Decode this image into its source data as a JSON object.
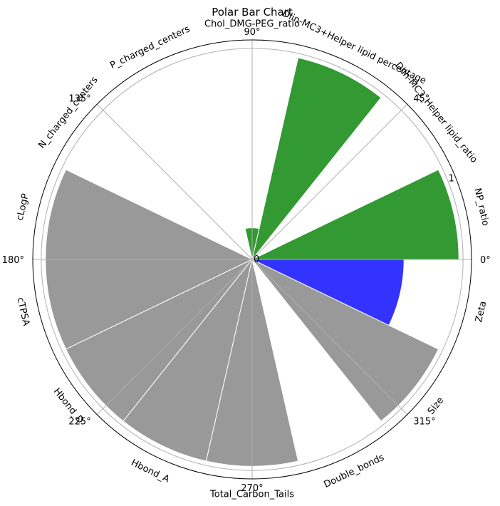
{
  "chart_data": {
    "type": "bar",
    "subtype": "polar",
    "title": "Polar Bar Chart",
    "categories": [
      "NP_ratio",
      "Dlin-MC3_Helper lipid_ratio",
      "Dlin-MC3+Helper lipid percentage",
      "Chol_DMG-PEG_ratio",
      "P_charged_centers",
      "N_charged_centers",
      "cLogP",
      "cTPSA",
      "Hbond_D",
      "Hbond_A",
      "Total_Carbon_Tails",
      "Double_bonds",
      "Size",
      "Zeta"
    ],
    "values": [
      0.98,
      0.0,
      0.98,
      0.15,
      0.0,
      0.0,
      0.98,
      0.98,
      0.98,
      0.98,
      0.98,
      0.0,
      0.98,
      0.72
    ],
    "bar_colors": [
      "#339933",
      "#339933",
      "#339933",
      "#339933",
      "#999999",
      "#999999",
      "#999999",
      "#999999",
      "#999999",
      "#999999",
      "#999999",
      "#999999",
      "#999999",
      "#3333ff"
    ],
    "radial_ticks": [
      "0",
      "1"
    ],
    "angle_ticks": [
      "0°",
      "45°",
      "90°",
      "135°",
      "180°",
      "225°",
      "270°",
      "315°"
    ],
    "rlim": [
      0,
      1.04
    ],
    "grid": true,
    "legend": "none"
  }
}
